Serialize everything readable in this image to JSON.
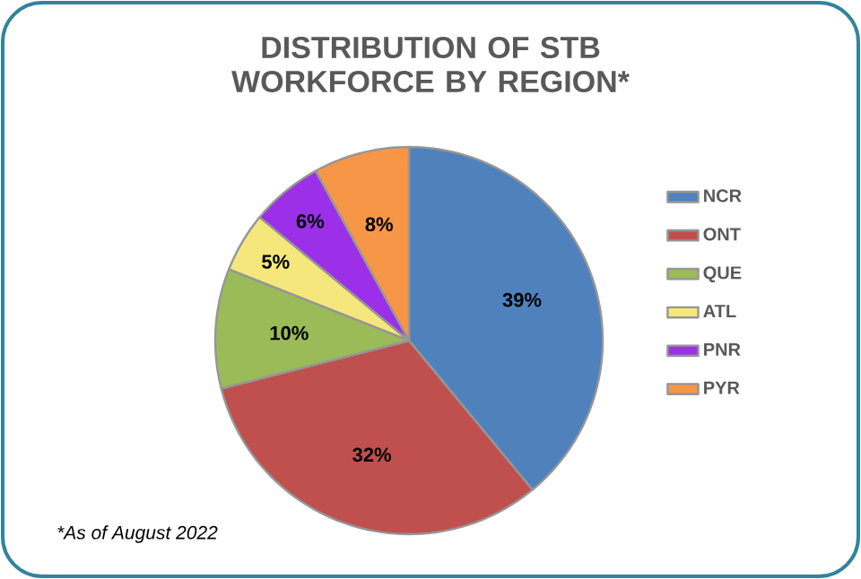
{
  "chart_data": {
    "type": "pie",
    "title": "DISTRIBUTION OF STB WORKFORCE BY REGION*",
    "categories": [
      "NCR",
      "ONT",
      "QUE",
      "ATL",
      "PNR",
      "PYR"
    ],
    "values": [
      39,
      32,
      10,
      5,
      6,
      8
    ],
    "colors": [
      "#4f81bd",
      "#c0504d",
      "#9bbb59",
      "#f5e77c",
      "#9b30e8",
      "#f79646"
    ],
    "value_labels": [
      "39%",
      "32%",
      "10%",
      "5%",
      "6%",
      "8%"
    ],
    "legend": "right",
    "annotations": [
      "*As of August 2022"
    ]
  }
}
